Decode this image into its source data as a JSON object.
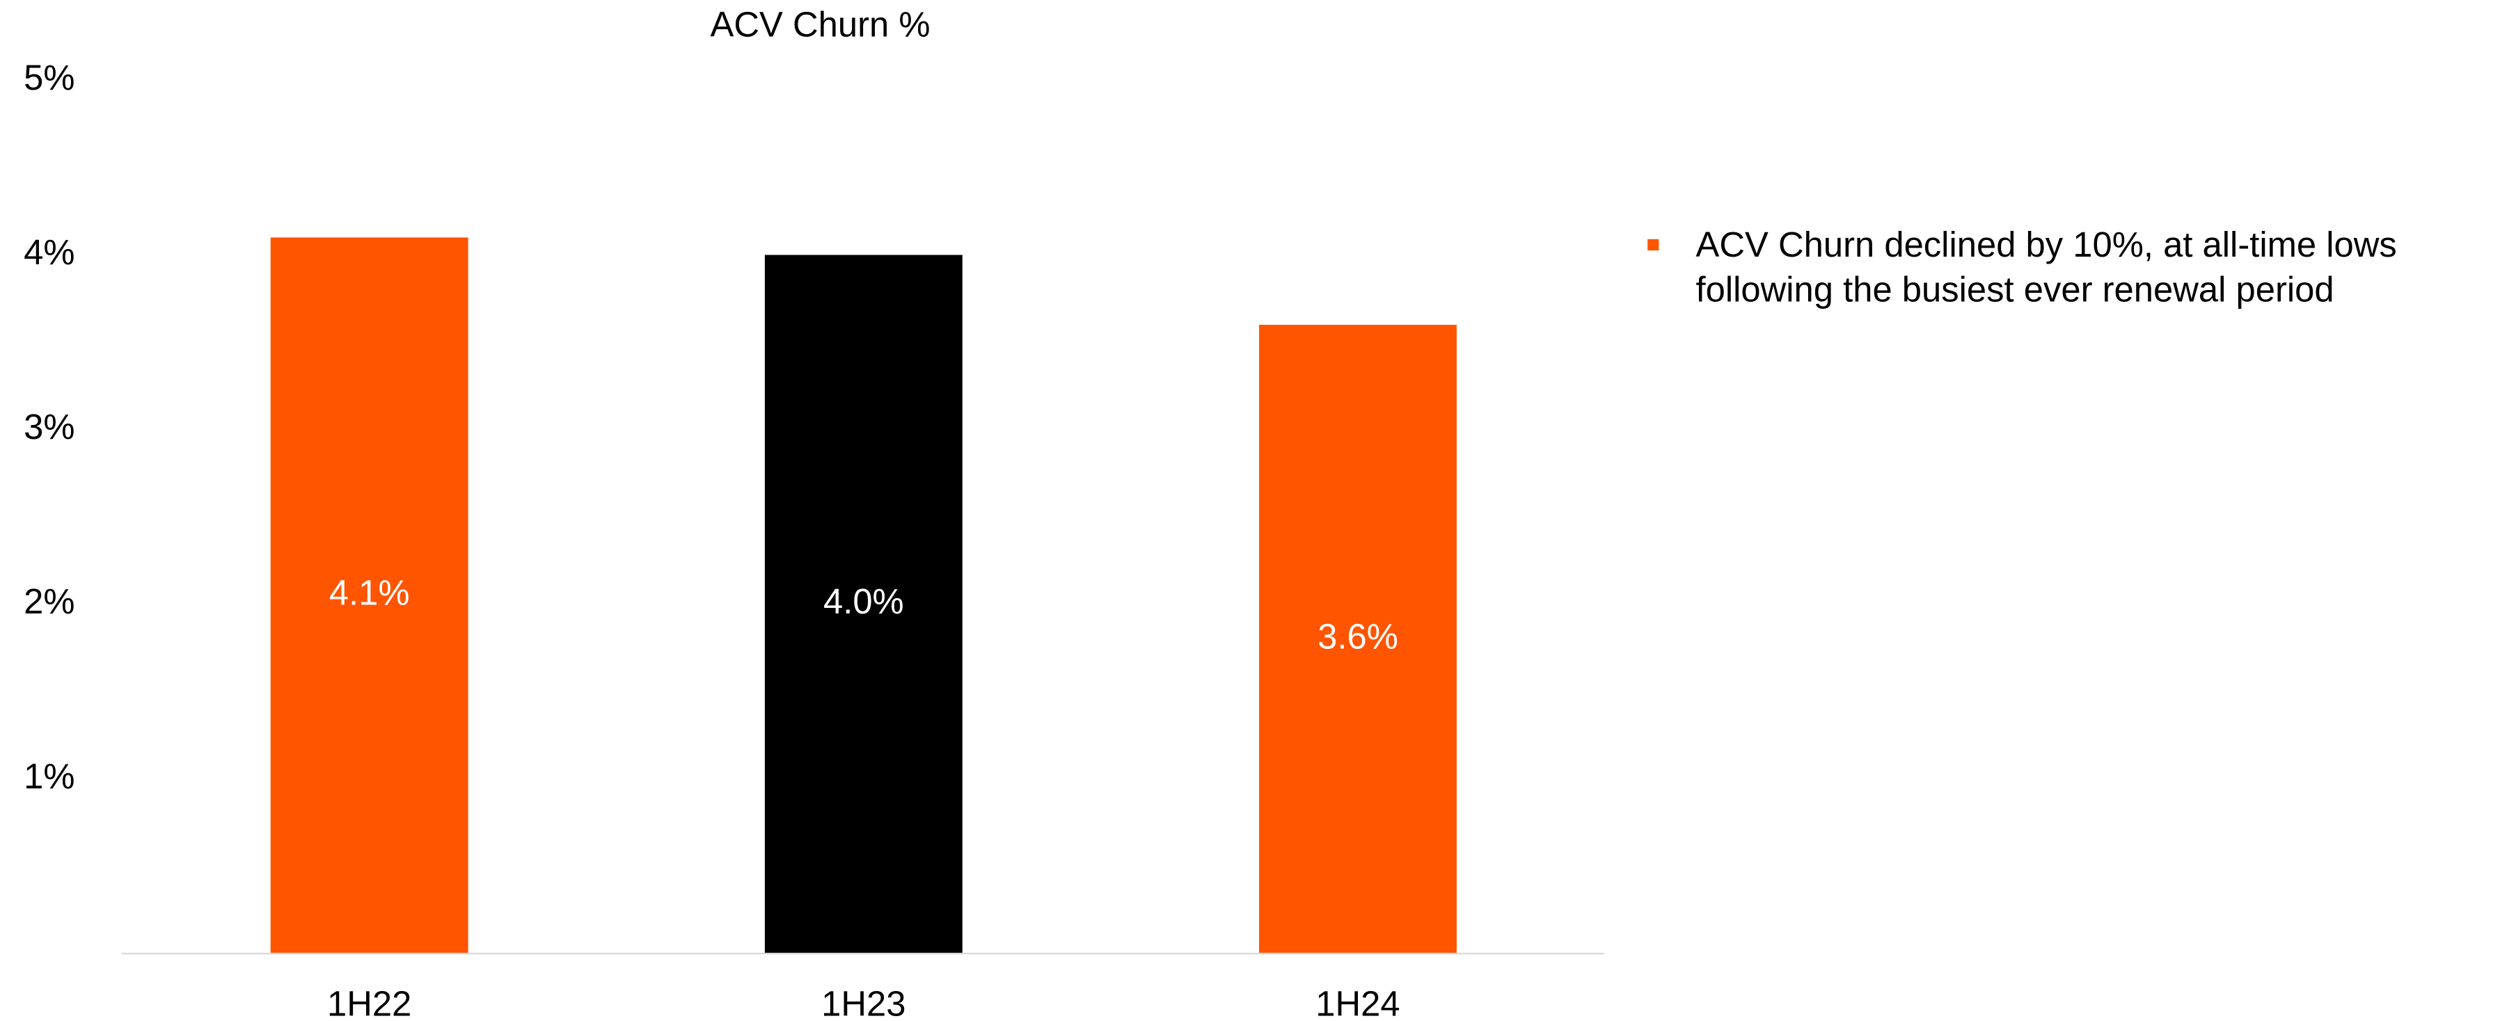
{
  "chart_data": {
    "type": "bar",
    "title": "ACV Churn %",
    "categories": [
      "1H22",
      "1H23",
      "1H24"
    ],
    "values": [
      4.1,
      4.0,
      3.6
    ],
    "value_labels": [
      "4.1%",
      "4.0%",
      "3.6%"
    ],
    "colors": [
      "#ff5500",
      "#000000",
      "#ff5500"
    ],
    "ylim": [
      0,
      5
    ],
    "yticks": [
      {
        "value": 1,
        "label": "1%"
      },
      {
        "value": 2,
        "label": "2%"
      },
      {
        "value": 3,
        "label": "3%"
      },
      {
        "value": 4,
        "label": "4%"
      },
      {
        "value": 5,
        "label": "5%"
      }
    ],
    "grid": false,
    "annotation": [
      "ACV Churn declined by 10%, at all-time lows",
      "following the busiest ever renewal period"
    ],
    "annotation_color": "#ff5500"
  }
}
